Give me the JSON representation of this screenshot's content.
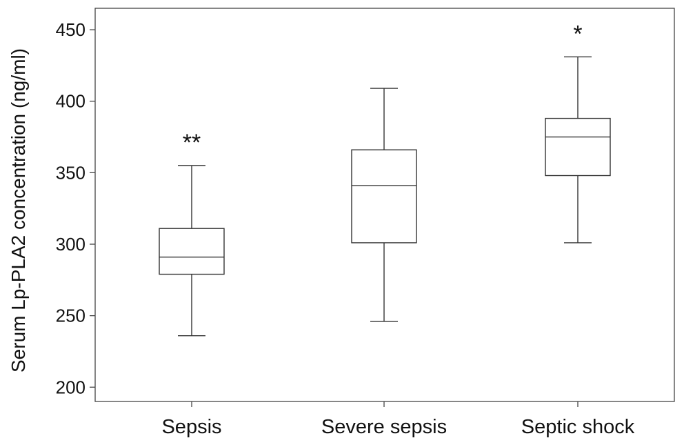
{
  "chart_data": {
    "type": "box",
    "ylabel": "Serum Lp-PLA2 concentration (ng/ml)",
    "xlabel": "",
    "ylim": [
      190,
      465
    ],
    "yticks": [
      200,
      250,
      300,
      350,
      400,
      450
    ],
    "grid": false,
    "categories": [
      "Sepsis",
      "Severe sepsis",
      "Septic shock"
    ],
    "boxes": [
      {
        "category": "Sepsis",
        "min": 236,
        "q1": 279,
        "median": 291,
        "q3": 311,
        "max": 355,
        "annotation": "**"
      },
      {
        "category": "Severe sepsis",
        "min": 246,
        "q1": 301,
        "median": 341,
        "q3": 366,
        "max": 409,
        "annotation": ""
      },
      {
        "category": "Septic shock",
        "min": 301,
        "q1": 348,
        "median": 375,
        "q3": 388,
        "max": 431,
        "annotation": "*"
      }
    ],
    "colors": {
      "stroke": "#333333",
      "fill": "#ffffff"
    }
  }
}
